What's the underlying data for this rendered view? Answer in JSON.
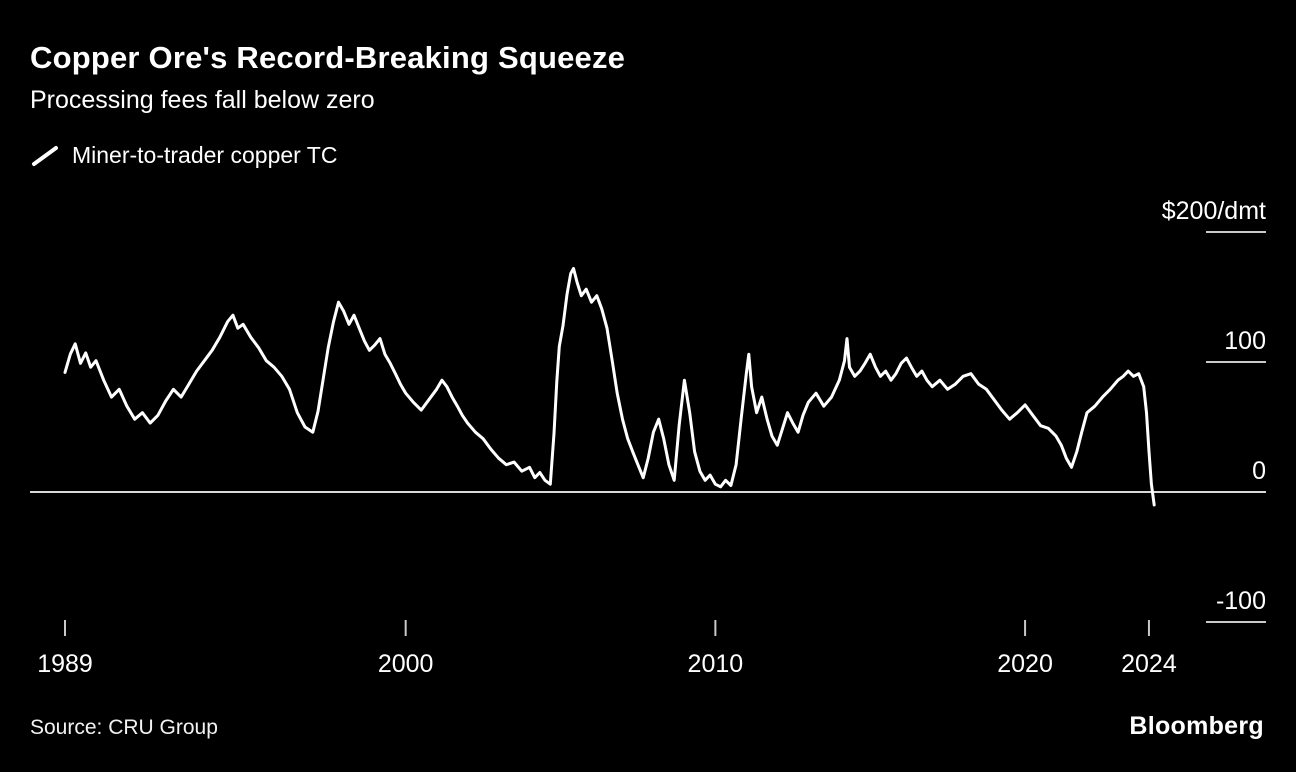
{
  "source": "Source: CRU Group",
  "brand": "Bloomberg",
  "colors": {
    "background": "#000000",
    "text": "#ffffff",
    "line": "#ffffff",
    "zero_line": "#d9d9d9",
    "tick": "#c9c9c9"
  },
  "chart_data": {
    "type": "line",
    "title": "Copper Ore's Record-Breaking Squeeze",
    "subtitle": "Processing fees fall below zero",
    "unit": "$/dmt",
    "xlabel": "",
    "ylabel": "$/dmt",
    "xlim": [
      1988,
      2028
    ],
    "ylim": [
      -160,
      230
    ],
    "grid": false,
    "legend_position": "top-left",
    "x_ticks": [
      {
        "v": 1989,
        "label": "1989"
      },
      {
        "v": 2000,
        "label": "2000"
      },
      {
        "v": 2010,
        "label": "2010"
      },
      {
        "v": 2020,
        "label": "2020"
      },
      {
        "v": 2024,
        "label": "2024"
      }
    ],
    "y_ticks": [
      {
        "v": 200,
        "label": "$200/dmt"
      },
      {
        "v": 100,
        "label": "100"
      },
      {
        "v": 0,
        "label": "0"
      },
      {
        "v": -100,
        "label": "-100"
      }
    ],
    "series": [
      {
        "name": "Miner-to-trader copper TC",
        "color": "#ffffff",
        "points": [
          [
            1989.0,
            92
          ],
          [
            1989.17,
            106
          ],
          [
            1989.33,
            114
          ],
          [
            1989.5,
            99
          ],
          [
            1989.67,
            107
          ],
          [
            1989.83,
            96
          ],
          [
            1990.0,
            101
          ],
          [
            1990.25,
            86
          ],
          [
            1990.5,
            73
          ],
          [
            1990.75,
            79
          ],
          [
            1991.0,
            66
          ],
          [
            1991.25,
            56
          ],
          [
            1991.5,
            61
          ],
          [
            1991.75,
            53
          ],
          [
            1992.0,
            59
          ],
          [
            1992.25,
            70
          ],
          [
            1992.5,
            79
          ],
          [
            1992.75,
            73
          ],
          [
            1993.0,
            83
          ],
          [
            1993.25,
            93
          ],
          [
            1993.5,
            101
          ],
          [
            1993.75,
            109
          ],
          [
            1994.0,
            119
          ],
          [
            1994.25,
            131
          ],
          [
            1994.42,
            136
          ],
          [
            1994.58,
            126
          ],
          [
            1994.75,
            129
          ],
          [
            1995.0,
            119
          ],
          [
            1995.25,
            111
          ],
          [
            1995.5,
            101
          ],
          [
            1995.75,
            96
          ],
          [
            1996.0,
            89
          ],
          [
            1996.25,
            79
          ],
          [
            1996.5,
            61
          ],
          [
            1996.75,
            50
          ],
          [
            1997.0,
            46
          ],
          [
            1997.17,
            62
          ],
          [
            1997.33,
            86
          ],
          [
            1997.5,
            111
          ],
          [
            1997.67,
            131
          ],
          [
            1997.83,
            146
          ],
          [
            1998.0,
            139
          ],
          [
            1998.17,
            129
          ],
          [
            1998.33,
            136
          ],
          [
            1998.5,
            126
          ],
          [
            1998.67,
            116
          ],
          [
            1998.83,
            109
          ],
          [
            1999.0,
            113
          ],
          [
            1999.17,
            118
          ],
          [
            1999.33,
            106
          ],
          [
            1999.5,
            99
          ],
          [
            1999.67,
            91
          ],
          [
            1999.83,
            83
          ],
          [
            2000.0,
            76
          ],
          [
            2000.25,
            69
          ],
          [
            2000.5,
            63
          ],
          [
            2000.75,
            71
          ],
          [
            2001.0,
            79
          ],
          [
            2001.17,
            86
          ],
          [
            2001.33,
            81
          ],
          [
            2001.5,
            73
          ],
          [
            2001.67,
            66
          ],
          [
            2001.83,
            59
          ],
          [
            2002.0,
            53
          ],
          [
            2002.25,
            46
          ],
          [
            2002.5,
            41
          ],
          [
            2002.75,
            33
          ],
          [
            2003.0,
            26
          ],
          [
            2003.25,
            21
          ],
          [
            2003.5,
            23
          ],
          [
            2003.75,
            16
          ],
          [
            2004.0,
            19
          ],
          [
            2004.17,
            11
          ],
          [
            2004.33,
            15
          ],
          [
            2004.5,
            9
          ],
          [
            2004.67,
            6
          ],
          [
            2004.79,
            45
          ],
          [
            2004.88,
            85
          ],
          [
            2004.96,
            112
          ],
          [
            2005.08,
            128
          ],
          [
            2005.21,
            152
          ],
          [
            2005.33,
            168
          ],
          [
            2005.42,
            172
          ],
          [
            2005.54,
            161
          ],
          [
            2005.67,
            151
          ],
          [
            2005.83,
            156
          ],
          [
            2006.0,
            146
          ],
          [
            2006.17,
            151
          ],
          [
            2006.33,
            141
          ],
          [
            2006.5,
            126
          ],
          [
            2006.67,
            101
          ],
          [
            2006.83,
            76
          ],
          [
            2007.0,
            56
          ],
          [
            2007.17,
            41
          ],
          [
            2007.33,
            31
          ],
          [
            2007.5,
            21
          ],
          [
            2007.67,
            11
          ],
          [
            2007.83,
            26
          ],
          [
            2008.0,
            46
          ],
          [
            2008.17,
            56
          ],
          [
            2008.33,
            41
          ],
          [
            2008.5,
            21
          ],
          [
            2008.67,
            9
          ],
          [
            2008.83,
            51
          ],
          [
            2009.0,
            86
          ],
          [
            2009.17,
            61
          ],
          [
            2009.33,
            31
          ],
          [
            2009.5,
            16
          ],
          [
            2009.67,
            9
          ],
          [
            2009.83,
            13
          ],
          [
            2010.0,
            6
          ],
          [
            2010.17,
            4
          ],
          [
            2010.33,
            9
          ],
          [
            2010.5,
            5
          ],
          [
            2010.67,
            21
          ],
          [
            2010.83,
            56
          ],
          [
            2011.0,
            91
          ],
          [
            2011.08,
            106
          ],
          [
            2011.17,
            81
          ],
          [
            2011.33,
            61
          ],
          [
            2011.5,
            73
          ],
          [
            2011.67,
            56
          ],
          [
            2011.83,
            43
          ],
          [
            2012.0,
            36
          ],
          [
            2012.17,
            49
          ],
          [
            2012.33,
            61
          ],
          [
            2012.5,
            53
          ],
          [
            2012.67,
            46
          ],
          [
            2012.83,
            59
          ],
          [
            2013.0,
            69
          ],
          [
            2013.25,
            76
          ],
          [
            2013.5,
            66
          ],
          [
            2013.75,
            73
          ],
          [
            2014.0,
            86
          ],
          [
            2014.17,
            101
          ],
          [
            2014.25,
            118
          ],
          [
            2014.33,
            96
          ],
          [
            2014.5,
            89
          ],
          [
            2014.67,
            93
          ],
          [
            2014.83,
            99
          ],
          [
            2015.0,
            106
          ],
          [
            2015.17,
            96
          ],
          [
            2015.33,
            89
          ],
          [
            2015.5,
            93
          ],
          [
            2015.67,
            86
          ],
          [
            2015.83,
            91
          ],
          [
            2016.0,
            99
          ],
          [
            2016.17,
            103
          ],
          [
            2016.33,
            96
          ],
          [
            2016.5,
            89
          ],
          [
            2016.67,
            93
          ],
          [
            2016.83,
            86
          ],
          [
            2017.0,
            81
          ],
          [
            2017.25,
            86
          ],
          [
            2017.5,
            79
          ],
          [
            2017.75,
            83
          ],
          [
            2018.0,
            89
          ],
          [
            2018.25,
            91
          ],
          [
            2018.5,
            83
          ],
          [
            2018.75,
            79
          ],
          [
            2019.0,
            71
          ],
          [
            2019.25,
            63
          ],
          [
            2019.5,
            56
          ],
          [
            2019.75,
            61
          ],
          [
            2020.0,
            67
          ],
          [
            2020.25,
            59
          ],
          [
            2020.5,
            51
          ],
          [
            2020.75,
            49
          ],
          [
            2021.0,
            43
          ],
          [
            2021.17,
            36
          ],
          [
            2021.33,
            26
          ],
          [
            2021.5,
            19
          ],
          [
            2021.67,
            31
          ],
          [
            2021.83,
            46
          ],
          [
            2022.0,
            61
          ],
          [
            2022.25,
            66
          ],
          [
            2022.5,
            73
          ],
          [
            2022.75,
            79
          ],
          [
            2023.0,
            86
          ],
          [
            2023.17,
            89
          ],
          [
            2023.33,
            93
          ],
          [
            2023.5,
            89
          ],
          [
            2023.67,
            91
          ],
          [
            2023.83,
            81
          ],
          [
            2023.92,
            61
          ],
          [
            2024.0,
            31
          ],
          [
            2024.08,
            6
          ],
          [
            2024.17,
            -10
          ]
        ]
      }
    ]
  }
}
